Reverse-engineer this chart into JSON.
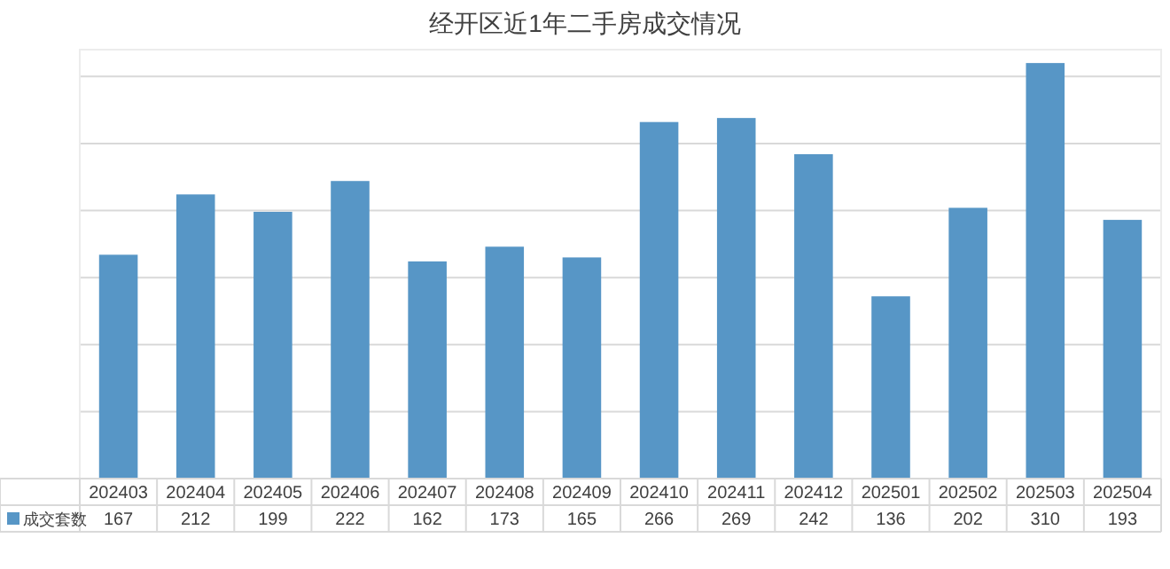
{
  "chart_data": {
    "type": "bar",
    "title": "经开区近1年二手房成交情况",
    "categories": [
      "202403",
      "202404",
      "202405",
      "202406",
      "202407",
      "202408",
      "202409",
      "202410",
      "202411",
      "202412",
      "202501",
      "202502",
      "202503",
      "202504"
    ],
    "series": [
      {
        "name": "成交套数",
        "color": "#5796c6",
        "values": [
          167,
          212,
          199,
          222,
          162,
          173,
          165,
          266,
          269,
          242,
          136,
          202,
          310,
          193
        ]
      }
    ],
    "ylim": [
      0,
      320
    ],
    "yticks": [
      {
        "value": 0,
        "label": null
      },
      {
        "value": 50,
        "label": null
      },
      {
        "value": 100,
        "label": null
      },
      {
        "value": 150,
        "label": null
      },
      {
        "value": 200,
        "label": null
      },
      {
        "value": 250,
        "label": null
      },
      {
        "value": 300,
        "label": null
      }
    ],
    "tick_labels": "x",
    "grid": "y",
    "data_labels": true,
    "legend": "bottom"
  }
}
